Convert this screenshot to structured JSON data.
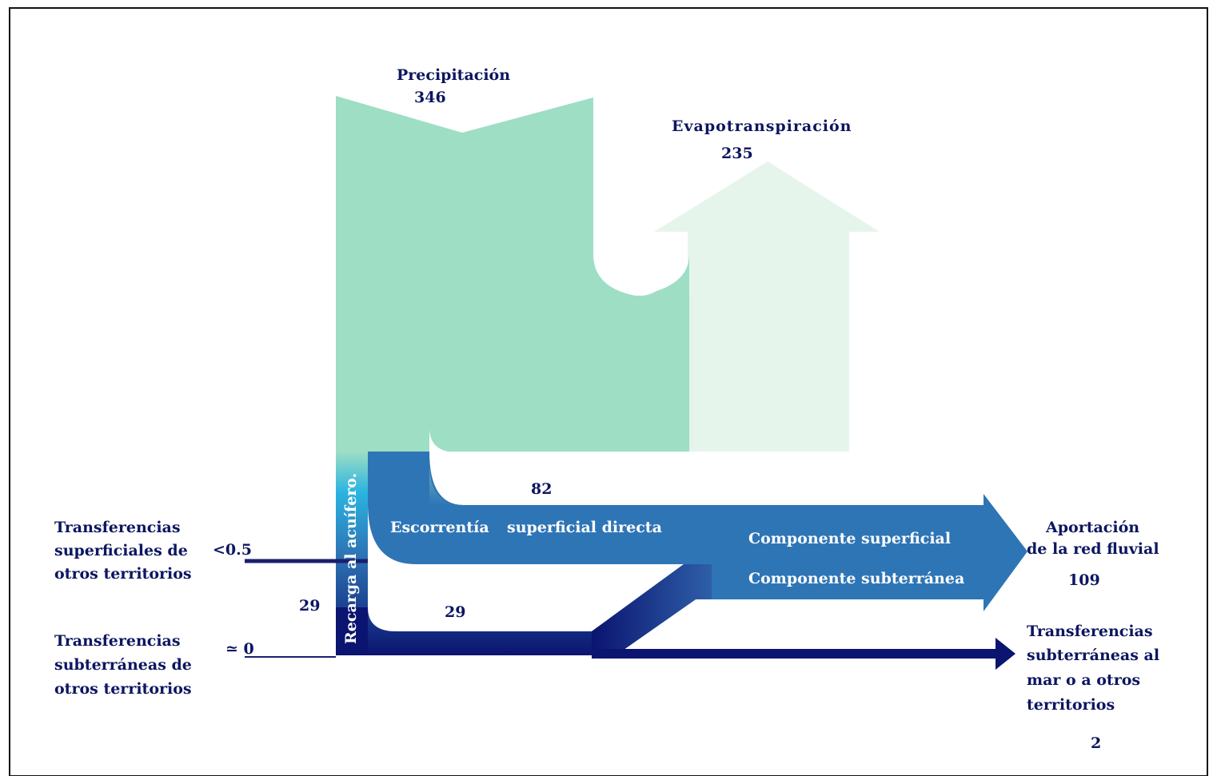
{
  "diagram": {
    "precipitacion": {
      "label": "Precipitación",
      "value": "346"
    },
    "evapotranspiracion": {
      "label": "Evapotranspiración",
      "value": "235"
    },
    "escorrentia": {
      "label_a": "Escorrentía",
      "label_b": "superficial directa",
      "value": "82"
    },
    "recarga": {
      "label": "Recarga al acuífero.",
      "value": "29"
    },
    "subterranea_flow_value": "29",
    "componente_superficial": "Componente superficial",
    "componente_subterranea": "Componente subterránea",
    "aportacion": {
      "line1": "Aportación",
      "line2": "de la red fluvial",
      "value": "109"
    },
    "transf_sup_otros": {
      "line1": "Transferencias",
      "line2": "superficiales de",
      "line3": "otros territorios",
      "value": "<0.5"
    },
    "transf_sub_otros": {
      "line1": "Transferencias",
      "line2": "subterráneas de",
      "line3": "otros territorios",
      "value": "≃ 0"
    },
    "transf_sub_mar": {
      "line1": "Transferencias",
      "line2": "subterráneas al",
      "line3": "mar o a otros",
      "line4": "territorios",
      "value": "2"
    }
  },
  "colors": {
    "precipitation": "#9edec5",
    "evapotranspiration": "#e6f5ec",
    "runoff": "#2e75b6",
    "recharge": "#2ab4e0",
    "groundwater": "#0b1470"
  }
}
